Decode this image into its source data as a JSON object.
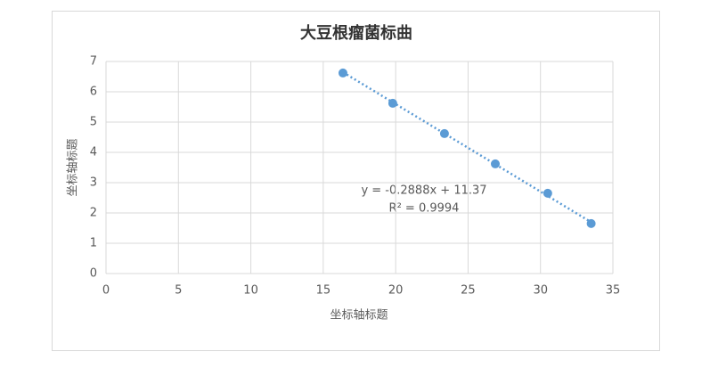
{
  "chart_data": {
    "type": "scatter",
    "title": "大豆根瘤菌标曲",
    "x_label": "坐标轴标题",
    "y_label": "坐标轴标题",
    "x": [
      16.36,
      19.8,
      23.37,
      26.88,
      30.5,
      33.5
    ],
    "series": [
      {
        "name": "大豆根瘤菌标曲",
        "color": "#5b9bd5",
        "values": [
          6.62,
          5.62,
          4.62,
          3.62,
          2.65,
          1.65
        ]
      }
    ],
    "trendline": {
      "slope": -0.2888,
      "intercept": 11.37,
      "equation": "y = -0.2888x + 11.37",
      "r_squared": "R² = 0.9994"
    },
    "xlim": [
      0,
      35
    ],
    "xticks": [
      0,
      5,
      10,
      15,
      20,
      25,
      30,
      35
    ],
    "ylim": [
      0,
      7
    ],
    "yticks": [
      0,
      1,
      2,
      3,
      4,
      5,
      6,
      7
    ],
    "grid": true
  }
}
